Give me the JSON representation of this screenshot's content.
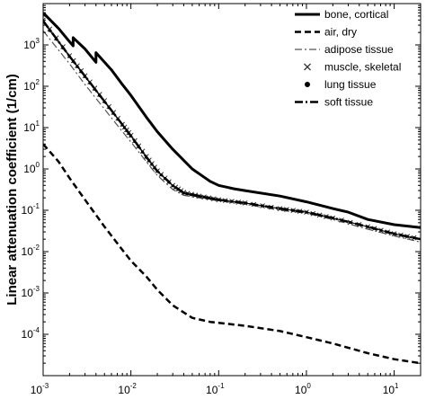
{
  "chart_data": {
    "type": "line",
    "ylabel": "Linear attenuation coefficient (1/cm)",
    "xlabel": "",
    "xscale": "log",
    "yscale": "log",
    "xlim": [
      0.001,
      20
    ],
    "ylim": [
      1e-05,
      10000
    ],
    "grid": false,
    "legend_position": "top-right",
    "x_ticks": [
      {
        "base": "10",
        "exp": "-3",
        "value": 0.001
      },
      {
        "base": "10",
        "exp": "-2",
        "value": 0.01
      },
      {
        "base": "10",
        "exp": "-1",
        "value": 0.1
      },
      {
        "base": "10",
        "exp": "0",
        "value": 1
      },
      {
        "base": "10",
        "exp": "1",
        "value": 10
      }
    ],
    "y_ticks": [
      {
        "base": "10",
        "exp": "-4",
        "value": 0.0001
      },
      {
        "base": "10",
        "exp": "-3",
        "value": 0.001
      },
      {
        "base": "10",
        "exp": "-2",
        "value": 0.01
      },
      {
        "base": "10",
        "exp": "-1",
        "value": 0.1
      },
      {
        "base": "10",
        "exp": "0",
        "value": 1
      },
      {
        "base": "10",
        "exp": "1",
        "value": 10
      },
      {
        "base": "10",
        "exp": "2",
        "value": 100
      },
      {
        "base": "10",
        "exp": "3",
        "value": 1000
      }
    ],
    "series": [
      {
        "name": "bone, cortical",
        "style": "solid-thick",
        "color": "#000000",
        "points": [
          [
            0.001,
            6000
          ],
          [
            0.0015,
            2500
          ],
          [
            0.002,
            1200
          ],
          [
            0.0022,
            950
          ],
          [
            0.0022,
            1500
          ],
          [
            0.003,
            800
          ],
          [
            0.004,
            380
          ],
          [
            0.004,
            650
          ],
          [
            0.006,
            250
          ],
          [
            0.008,
            110
          ],
          [
            0.01,
            60
          ],
          [
            0.015,
            18
          ],
          [
            0.02,
            8
          ],
          [
            0.03,
            3
          ],
          [
            0.05,
            1.0
          ],
          [
            0.08,
            0.5
          ],
          [
            0.1,
            0.4
          ],
          [
            0.15,
            0.33
          ],
          [
            0.2,
            0.3
          ],
          [
            0.5,
            0.22
          ],
          [
            1,
            0.16
          ],
          [
            2,
            0.11
          ],
          [
            3,
            0.09
          ],
          [
            5,
            0.06
          ],
          [
            10,
            0.045
          ],
          [
            20,
            0.038
          ]
        ]
      },
      {
        "name": "air, dry",
        "style": "dashed",
        "color": "#000000",
        "points": [
          [
            0.001,
            4
          ],
          [
            0.0015,
            1.5
          ],
          [
            0.002,
            0.6
          ],
          [
            0.003,
            0.18
          ],
          [
            0.005,
            0.04
          ],
          [
            0.008,
            0.011
          ],
          [
            0.01,
            0.006
          ],
          [
            0.015,
            0.0025
          ],
          [
            0.02,
            0.0012
          ],
          [
            0.03,
            0.0005
          ],
          [
            0.05,
            0.00025
          ],
          [
            0.08,
            0.0002
          ],
          [
            0.1,
            0.00019
          ],
          [
            0.2,
            0.00016
          ],
          [
            0.5,
            0.00012
          ],
          [
            1,
            8.5e-05
          ],
          [
            2,
            6e-05
          ],
          [
            5,
            3.5e-05
          ],
          [
            10,
            2.5e-05
          ],
          [
            20,
            2e-05
          ]
        ]
      },
      {
        "name": "adipose tissue",
        "style": "dash-dot",
        "color": "#555555",
        "points": [
          [
            0.001,
            2200
          ],
          [
            0.002,
            350
          ],
          [
            0.003,
            110
          ],
          [
            0.005,
            28
          ],
          [
            0.008,
            8
          ],
          [
            0.01,
            4.5
          ],
          [
            0.015,
            1.5
          ],
          [
            0.02,
            0.7
          ],
          [
            0.03,
            0.32
          ],
          [
            0.04,
            0.23
          ],
          [
            0.06,
            0.2
          ],
          [
            0.1,
            0.17
          ],
          [
            0.2,
            0.14
          ],
          [
            0.5,
            0.1
          ],
          [
            1,
            0.085
          ],
          [
            2,
            0.06
          ],
          [
            5,
            0.035
          ],
          [
            10,
            0.024
          ],
          [
            20,
            0.017
          ]
        ]
      },
      {
        "name": "muscle, skeletal",
        "style": "cross-marker",
        "color": "#333333",
        "points": [
          [
            0.001,
            4000
          ],
          [
            0.002,
            550
          ],
          [
            0.003,
            180
          ],
          [
            0.005,
            45
          ],
          [
            0.008,
            12
          ],
          [
            0.01,
            6.5
          ],
          [
            0.015,
            2.0
          ],
          [
            0.02,
            0.9
          ],
          [
            0.03,
            0.4
          ],
          [
            0.04,
            0.27
          ],
          [
            0.06,
            0.22
          ],
          [
            0.1,
            0.18
          ],
          [
            0.2,
            0.15
          ],
          [
            0.5,
            0.11
          ],
          [
            1,
            0.09
          ],
          [
            2,
            0.065
          ],
          [
            5,
            0.04
          ],
          [
            10,
            0.027
          ],
          [
            20,
            0.02
          ]
        ]
      },
      {
        "name": "lung tissue",
        "style": "dot-marker",
        "color": "#000000",
        "points": [
          [
            0.001,
            3600
          ],
          [
            0.002,
            520
          ],
          [
            0.003,
            170
          ],
          [
            0.005,
            42
          ],
          [
            0.008,
            11.5
          ],
          [
            0.01,
            6.2
          ],
          [
            0.015,
            1.9
          ],
          [
            0.02,
            0.88
          ],
          [
            0.03,
            0.39
          ],
          [
            0.04,
            0.26
          ],
          [
            0.06,
            0.22
          ],
          [
            0.1,
            0.18
          ],
          [
            0.2,
            0.15
          ],
          [
            0.5,
            0.11
          ],
          [
            1,
            0.09
          ],
          [
            2,
            0.065
          ],
          [
            5,
            0.04
          ],
          [
            10,
            0.027
          ],
          [
            20,
            0.02
          ]
        ]
      },
      {
        "name": "soft tissue",
        "style": "dash-dot-thick",
        "color": "#000000",
        "points": [
          [
            0.001,
            3800
          ],
          [
            0.002,
            530
          ],
          [
            0.003,
            175
          ],
          [
            0.005,
            43
          ],
          [
            0.008,
            11.8
          ],
          [
            0.01,
            6.3
          ],
          [
            0.015,
            1.95
          ],
          [
            0.02,
            0.89
          ],
          [
            0.03,
            0.4
          ],
          [
            0.04,
            0.265
          ],
          [
            0.06,
            0.22
          ],
          [
            0.1,
            0.18
          ],
          [
            0.2,
            0.15
          ],
          [
            0.5,
            0.11
          ],
          [
            1,
            0.09
          ],
          [
            2,
            0.065
          ],
          [
            5,
            0.04
          ],
          [
            10,
            0.027
          ],
          [
            20,
            0.02
          ]
        ]
      }
    ]
  }
}
